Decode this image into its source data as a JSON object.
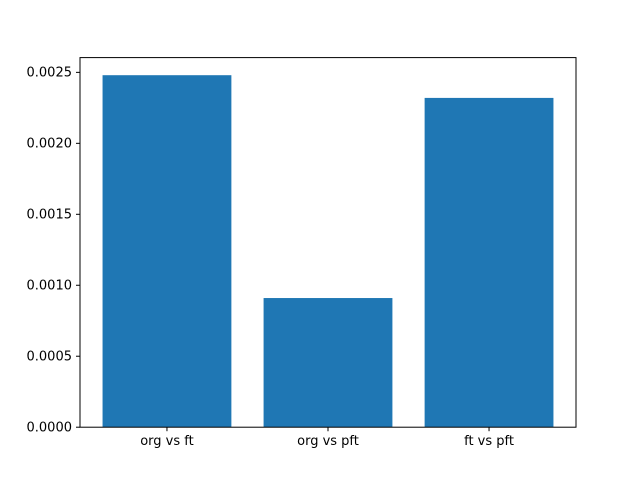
{
  "figure": {
    "background": "#ffffff",
    "title": ""
  },
  "chart_data": {
    "type": "bar",
    "title": "",
    "xlabel": "",
    "ylabel": "",
    "categories": [
      "org vs ft",
      "org vs pft",
      "ft vs pft"
    ],
    "values": [
      0.00248,
      0.00091,
      0.00232
    ],
    "bar_color": "#1f77b4",
    "axis_color": "#000000",
    "ylim": [
      0,
      0.002604
    ],
    "yticks": [
      0.0,
      0.0005,
      0.001,
      0.0015,
      0.002,
      0.0025
    ],
    "ytick_labels": [
      "0.0000",
      "0.0005",
      "0.0010",
      "0.0015",
      "0.0020",
      "0.0025"
    ],
    "bar_width_fraction": 0.8,
    "grid": false,
    "legend": null
  }
}
